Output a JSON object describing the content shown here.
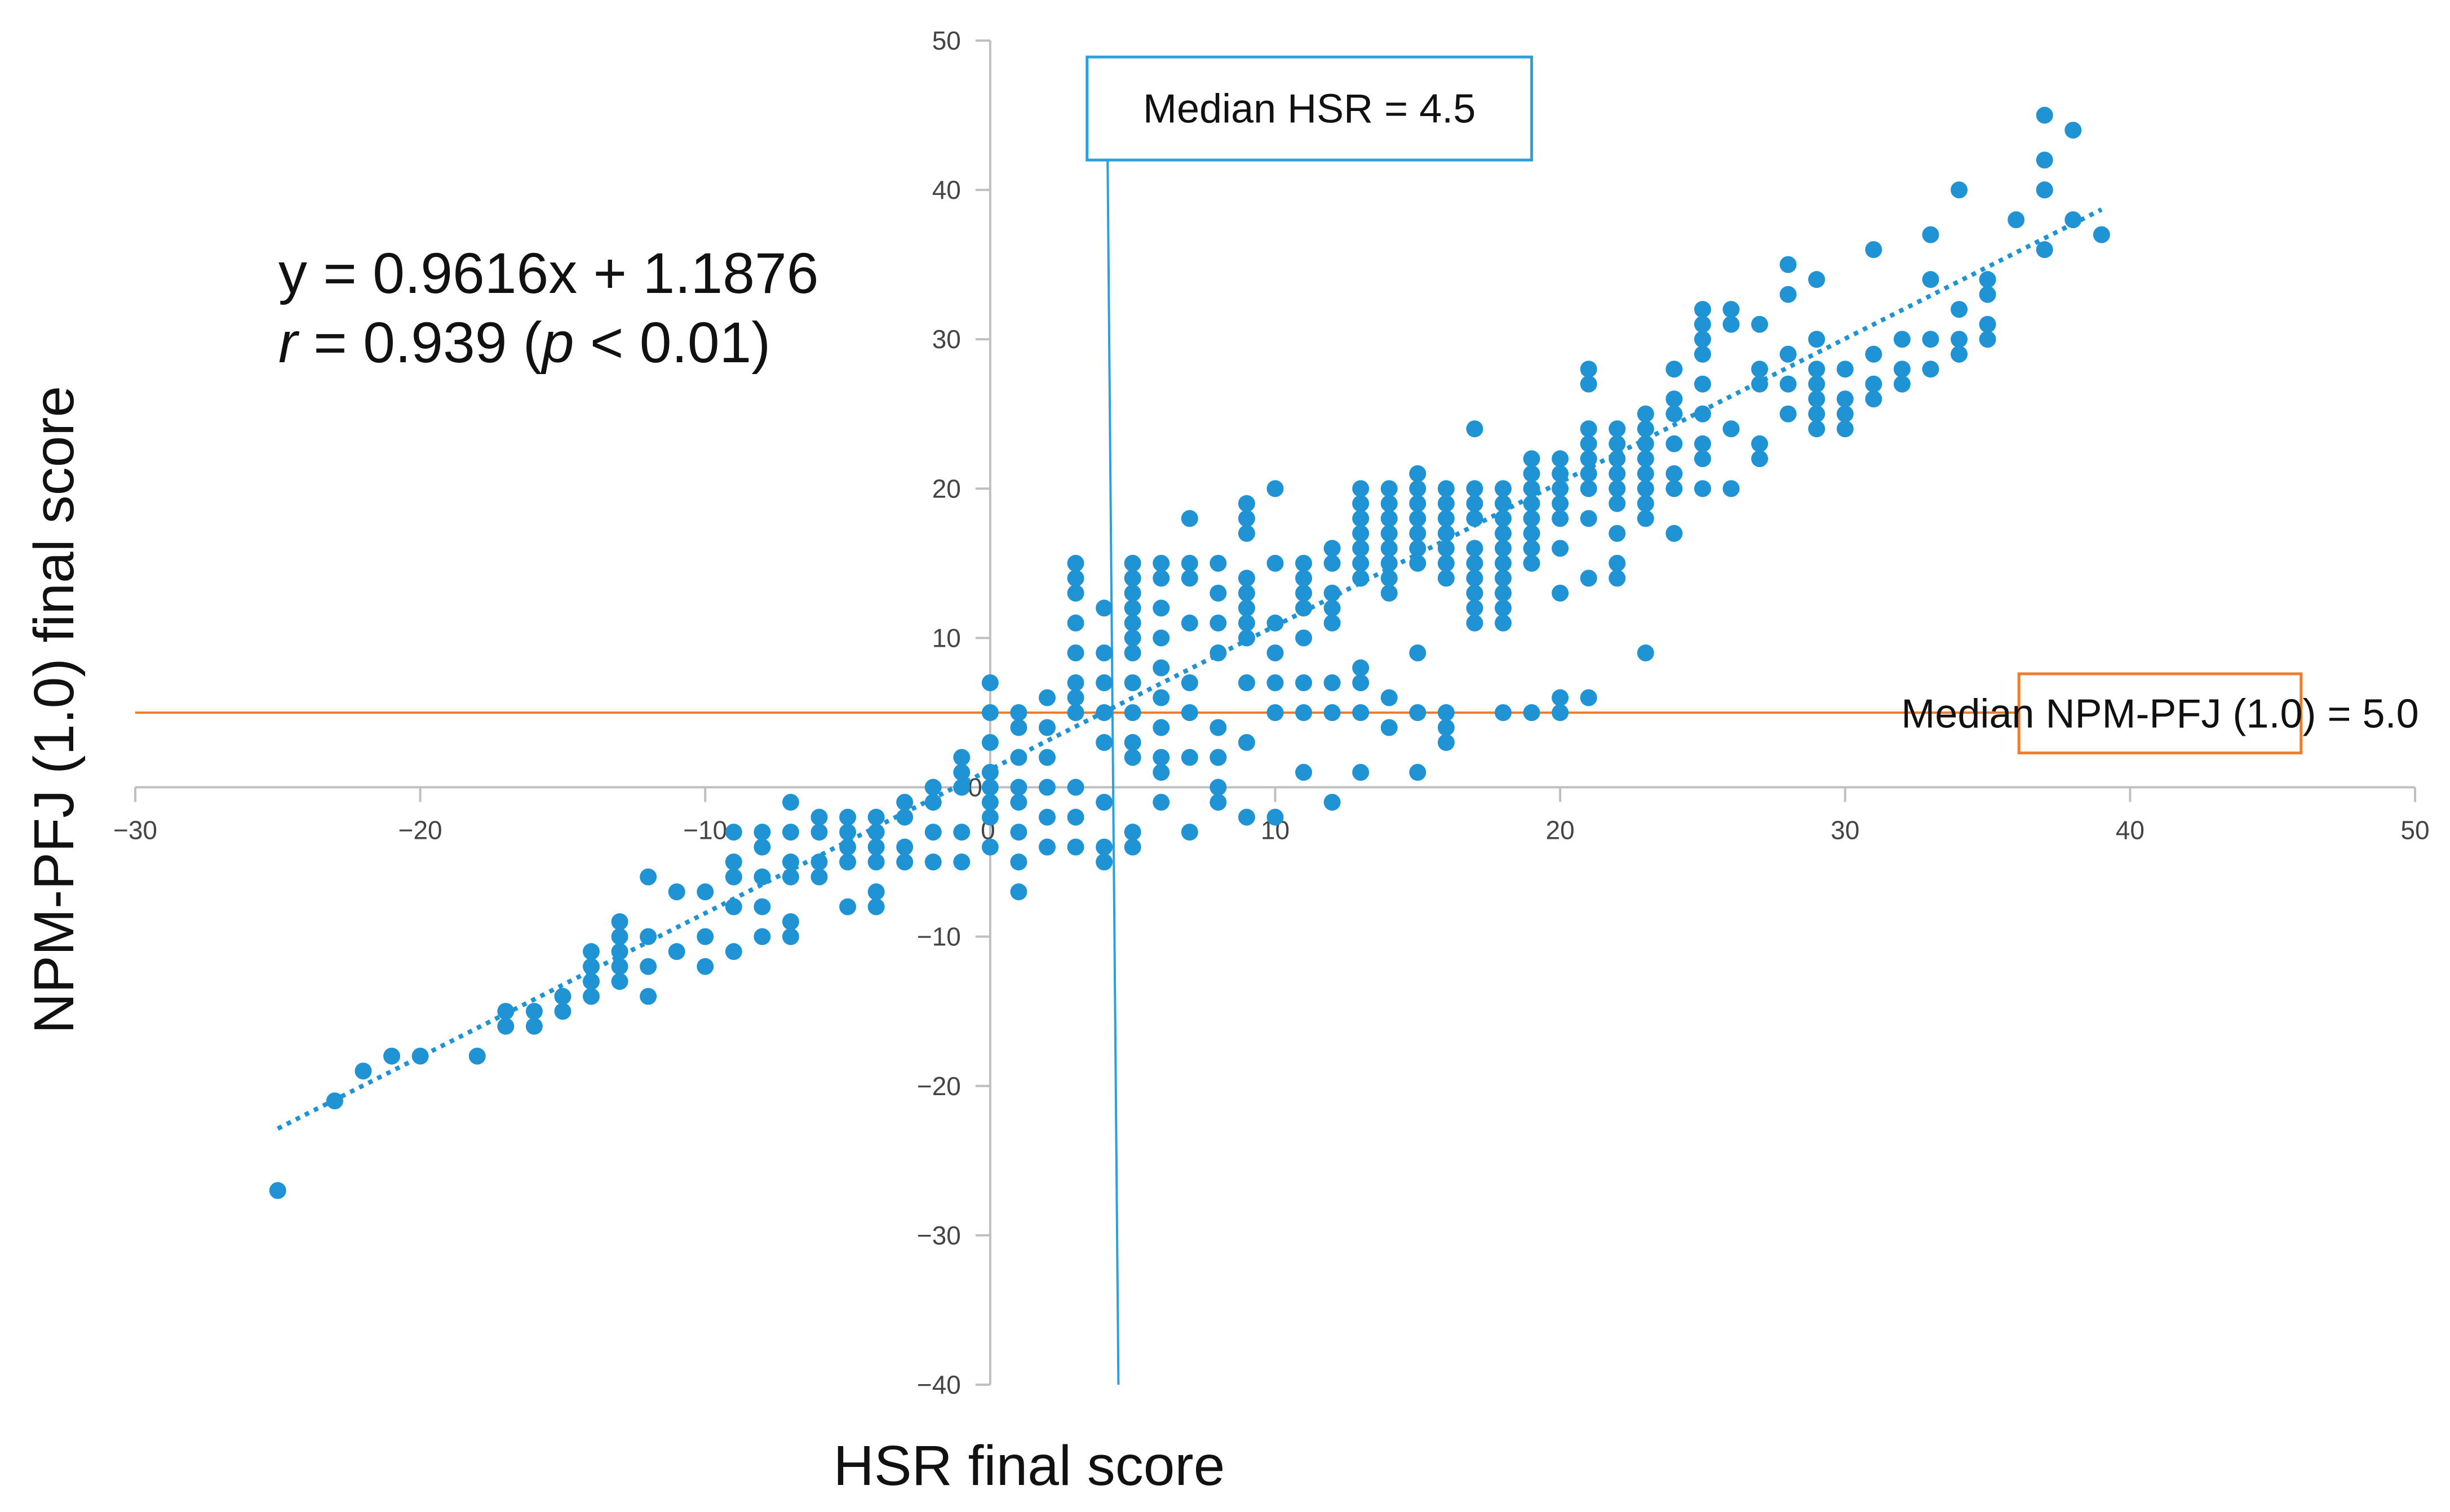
{
  "chart_data": {
    "type": "scatter",
    "xlabel": "HSR final score",
    "ylabel": "NPM-PFJ (1.0) final score",
    "xlim": [
      -30,
      50
    ],
    "ylim": [
      -40,
      50
    ],
    "x_ticks": [
      "−30",
      "−20",
      "−10",
      "0",
      "10",
      "20",
      "30",
      "40",
      "50"
    ],
    "y_ticks": [
      "50",
      "40",
      "30",
      "20",
      "10",
      "0",
      "−10",
      "−20",
      "−30",
      "−40"
    ],
    "trendline": {
      "slope": 0.9616,
      "intercept": 1.1876,
      "x_range": [
        -25,
        39
      ]
    },
    "equation": {
      "line1": "y = 0.9616x + 1.1876",
      "r_label": "r",
      "r_value": " = 0.939 (",
      "p_label": "p",
      "p_value": " < 0.01)"
    },
    "median_x": {
      "value": 4.5,
      "label": "Median HSR = 4.5"
    },
    "median_y": {
      "value": 5.0,
      "label": "Median NPM-PFJ (1.0) = 5.0"
    },
    "colors": {
      "points": "#1f93d3",
      "median_x": "#2aa0dc",
      "median_y": "#ef7d2f",
      "axis": "#bfbfbf"
    },
    "points": [
      [
        -25,
        -27
      ],
      [
        -23,
        -21
      ],
      [
        -22,
        -19
      ],
      [
        -21,
        -18
      ],
      [
        -20,
        -18
      ],
      [
        -18,
        -18
      ],
      [
        -17,
        -15
      ],
      [
        -17,
        -16
      ],
      [
        -16,
        -15
      ],
      [
        -16,
        -16
      ],
      [
        -15,
        -14
      ],
      [
        -15,
        -15
      ],
      [
        -14,
        -11
      ],
      [
        -14,
        -12
      ],
      [
        -14,
        -13
      ],
      [
        -14,
        -14
      ],
      [
        -13,
        -9
      ],
      [
        -13,
        -10
      ],
      [
        -13,
        -11
      ],
      [
        -13,
        -12
      ],
      [
        -13,
        -13
      ],
      [
        -12,
        -6
      ],
      [
        -12,
        -10
      ],
      [
        -12,
        -12
      ],
      [
        -12,
        -14
      ],
      [
        -11,
        -7
      ],
      [
        -11,
        -11
      ],
      [
        -10,
        -7
      ],
      [
        -10,
        -10
      ],
      [
        -10,
        -12
      ],
      [
        -9,
        -3
      ],
      [
        -9,
        -5
      ],
      [
        -9,
        -6
      ],
      [
        -9,
        -8
      ],
      [
        -9,
        -11
      ],
      [
        -8,
        -3
      ],
      [
        -8,
        -4
      ],
      [
        -8,
        -6
      ],
      [
        -8,
        -8
      ],
      [
        -8,
        -10
      ],
      [
        -7,
        -1
      ],
      [
        -7,
        -3
      ],
      [
        -7,
        -5
      ],
      [
        -7,
        -6
      ],
      [
        -7,
        -9
      ],
      [
        -7,
        -10
      ],
      [
        -6,
        -2
      ],
      [
        -6,
        -3
      ],
      [
        -6,
        -5
      ],
      [
        -6,
        -6
      ],
      [
        -5,
        -2
      ],
      [
        -5,
        -3
      ],
      [
        -5,
        -4
      ],
      [
        -5,
        -5
      ],
      [
        -5,
        -8
      ],
      [
        -4,
        -2
      ],
      [
        -4,
        -3
      ],
      [
        -4,
        -4
      ],
      [
        -4,
        -5
      ],
      [
        -4,
        -7
      ],
      [
        -4,
        -8
      ],
      [
        -3,
        -1
      ],
      [
        -3,
        -2
      ],
      [
        -3,
        -4
      ],
      [
        -3,
        -5
      ],
      [
        -2,
        0
      ],
      [
        -2,
        -1
      ],
      [
        -2,
        -3
      ],
      [
        -2,
        -5
      ],
      [
        -1,
        0
      ],
      [
        -1,
        1
      ],
      [
        -1,
        2
      ],
      [
        -1,
        -3
      ],
      [
        -1,
        -5
      ],
      [
        0,
        0
      ],
      [
        0,
        1
      ],
      [
        0,
        3
      ],
      [
        0,
        5
      ],
      [
        0,
        7
      ],
      [
        0,
        -1
      ],
      [
        0,
        -2
      ],
      [
        0,
        -4
      ],
      [
        1,
        0
      ],
      [
        1,
        2
      ],
      [
        1,
        4
      ],
      [
        1,
        5
      ],
      [
        1,
        -1
      ],
      [
        1,
        -3
      ],
      [
        1,
        -5
      ],
      [
        1,
        -7
      ],
      [
        2,
        0
      ],
      [
        2,
        2
      ],
      [
        2,
        4
      ],
      [
        2,
        6
      ],
      [
        2,
        -2
      ],
      [
        2,
        -4
      ],
      [
        3,
        5
      ],
      [
        3,
        6
      ],
      [
        3,
        7
      ],
      [
        3,
        9
      ],
      [
        3,
        11
      ],
      [
        3,
        13
      ],
      [
        3,
        14
      ],
      [
        3,
        15
      ],
      [
        3,
        0
      ],
      [
        3,
        -2
      ],
      [
        3,
        -4
      ],
      [
        4,
        3
      ],
      [
        4,
        5
      ],
      [
        4,
        7
      ],
      [
        4,
        9
      ],
      [
        4,
        12
      ],
      [
        4,
        -1
      ],
      [
        4,
        -4
      ],
      [
        4,
        -5
      ],
      [
        5,
        5
      ],
      [
        5,
        7
      ],
      [
        5,
        9
      ],
      [
        5,
        10
      ],
      [
        5,
        11
      ],
      [
        5,
        12
      ],
      [
        5,
        13
      ],
      [
        5,
        14
      ],
      [
        5,
        15
      ],
      [
        5,
        3
      ],
      [
        5,
        2
      ],
      [
        5,
        -3
      ],
      [
        5,
        -4
      ],
      [
        6,
        4
      ],
      [
        6,
        6
      ],
      [
        6,
        8
      ],
      [
        6,
        10
      ],
      [
        6,
        12
      ],
      [
        6,
        14
      ],
      [
        6,
        15
      ],
      [
        6,
        1
      ],
      [
        6,
        -1
      ],
      [
        6,
        2
      ],
      [
        7,
        5
      ],
      [
        7,
        7
      ],
      [
        7,
        11
      ],
      [
        7,
        14
      ],
      [
        7,
        15
      ],
      [
        7,
        18
      ],
      [
        7,
        -3
      ],
      [
        7,
        2
      ],
      [
        8,
        4
      ],
      [
        8,
        9
      ],
      [
        8,
        11
      ],
      [
        8,
        13
      ],
      [
        8,
        15
      ],
      [
        8,
        2
      ],
      [
        8,
        0
      ],
      [
        8,
        -1
      ],
      [
        8,
        2
      ],
      [
        9,
        7
      ],
      [
        9,
        10
      ],
      [
        9,
        11
      ],
      [
        9,
        12
      ],
      [
        9,
        13
      ],
      [
        9,
        14
      ],
      [
        9,
        17
      ],
      [
        9,
        18
      ],
      [
        9,
        19
      ],
      [
        9,
        -2
      ],
      [
        9,
        3
      ],
      [
        10,
        7
      ],
      [
        10,
        9
      ],
      [
        10,
        11
      ],
      [
        10,
        15
      ],
      [
        10,
        20
      ],
      [
        10,
        -2
      ],
      [
        10,
        5
      ],
      [
        11,
        5
      ],
      [
        11,
        7
      ],
      [
        11,
        10
      ],
      [
        11,
        12
      ],
      [
        11,
        13
      ],
      [
        11,
        14
      ],
      [
        11,
        15
      ],
      [
        11,
        1
      ],
      [
        12,
        5
      ],
      [
        12,
        7
      ],
      [
        12,
        11
      ],
      [
        12,
        12
      ],
      [
        12,
        13
      ],
      [
        12,
        15
      ],
      [
        12,
        16
      ],
      [
        12,
        -1
      ],
      [
        13,
        5
      ],
      [
        13,
        7
      ],
      [
        13,
        14
      ],
      [
        13,
        15
      ],
      [
        13,
        16
      ],
      [
        13,
        17
      ],
      [
        13,
        18
      ],
      [
        13,
        19
      ],
      [
        13,
        20
      ],
      [
        13,
        8
      ],
      [
        13,
        1
      ],
      [
        14,
        4
      ],
      [
        14,
        13
      ],
      [
        14,
        14
      ],
      [
        14,
        15
      ],
      [
        14,
        16
      ],
      [
        14,
        17
      ],
      [
        14,
        18
      ],
      [
        14,
        19
      ],
      [
        14,
        20
      ],
      [
        14,
        6
      ],
      [
        15,
        5
      ],
      [
        15,
        15
      ],
      [
        15,
        16
      ],
      [
        15,
        17
      ],
      [
        15,
        18
      ],
      [
        15,
        19
      ],
      [
        15,
        20
      ],
      [
        15,
        21
      ],
      [
        15,
        9
      ],
      [
        15,
        1
      ],
      [
        16,
        4
      ],
      [
        16,
        5
      ],
      [
        16,
        14
      ],
      [
        16,
        15
      ],
      [
        16,
        16
      ],
      [
        16,
        17
      ],
      [
        16,
        18
      ],
      [
        16,
        19
      ],
      [
        16,
        20
      ],
      [
        16,
        3
      ],
      [
        17,
        11
      ],
      [
        17,
        12
      ],
      [
        17,
        13
      ],
      [
        17,
        14
      ],
      [
        17,
        15
      ],
      [
        17,
        16
      ],
      [
        17,
        18
      ],
      [
        17,
        19
      ],
      [
        17,
        20
      ],
      [
        17,
        24
      ],
      [
        18,
        5
      ],
      [
        18,
        11
      ],
      [
        18,
        12
      ],
      [
        18,
        13
      ],
      [
        18,
        14
      ],
      [
        18,
        15
      ],
      [
        18,
        16
      ],
      [
        18,
        17
      ],
      [
        18,
        18
      ],
      [
        18,
        19
      ],
      [
        18,
        20
      ],
      [
        19,
        5
      ],
      [
        19,
        15
      ],
      [
        19,
        16
      ],
      [
        19,
        17
      ],
      [
        19,
        18
      ],
      [
        19,
        19
      ],
      [
        19,
        20
      ],
      [
        19,
        21
      ],
      [
        19,
        22
      ],
      [
        20,
        5
      ],
      [
        20,
        6
      ],
      [
        20,
        13
      ],
      [
        20,
        16
      ],
      [
        20,
        18
      ],
      [
        20,
        19
      ],
      [
        20,
        20
      ],
      [
        20,
        21
      ],
      [
        20,
        22
      ],
      [
        21,
        6
      ],
      [
        21,
        14
      ],
      [
        21,
        18
      ],
      [
        21,
        20
      ],
      [
        21,
        21
      ],
      [
        21,
        22
      ],
      [
        21,
        23
      ],
      [
        21,
        24
      ],
      [
        21,
        28
      ],
      [
        21,
        27
      ],
      [
        22,
        14
      ],
      [
        22,
        15
      ],
      [
        22,
        17
      ],
      [
        22,
        19
      ],
      [
        22,
        20
      ],
      [
        22,
        21
      ],
      [
        22,
        22
      ],
      [
        22,
        23
      ],
      [
        22,
        24
      ],
      [
        23,
        9
      ],
      [
        23,
        18
      ],
      [
        23,
        19
      ],
      [
        23,
        20
      ],
      [
        23,
        21
      ],
      [
        23,
        22
      ],
      [
        23,
        23
      ],
      [
        23,
        24
      ],
      [
        23,
        25
      ],
      [
        24,
        17
      ],
      [
        24,
        20
      ],
      [
        24,
        21
      ],
      [
        24,
        23
      ],
      [
        24,
        25
      ],
      [
        24,
        26
      ],
      [
        24,
        28
      ],
      [
        25,
        20
      ],
      [
        25,
        22
      ],
      [
        25,
        23
      ],
      [
        25,
        25
      ],
      [
        25,
        27
      ],
      [
        25,
        29
      ],
      [
        25,
        30
      ],
      [
        25,
        31
      ],
      [
        25,
        32
      ],
      [
        26,
        20
      ],
      [
        26,
        24
      ],
      [
        26,
        31
      ],
      [
        26,
        32
      ],
      [
        27,
        22
      ],
      [
        27,
        23
      ],
      [
        27,
        27
      ],
      [
        27,
        28
      ],
      [
        27,
        31
      ],
      [
        28,
        25
      ],
      [
        28,
        27
      ],
      [
        28,
        29
      ],
      [
        28,
        33
      ],
      [
        28,
        35
      ],
      [
        29,
        24
      ],
      [
        29,
        25
      ],
      [
        29,
        26
      ],
      [
        29,
        27
      ],
      [
        29,
        28
      ],
      [
        29,
        30
      ],
      [
        29,
        34
      ],
      [
        30,
        24
      ],
      [
        30,
        25
      ],
      [
        30,
        26
      ],
      [
        30,
        28
      ],
      [
        31,
        26
      ],
      [
        31,
        27
      ],
      [
        31,
        29
      ],
      [
        31,
        36
      ],
      [
        32,
        27
      ],
      [
        32,
        28
      ],
      [
        32,
        30
      ],
      [
        33,
        28
      ],
      [
        33,
        30
      ],
      [
        33,
        34
      ],
      [
        33,
        37
      ],
      [
        34,
        29
      ],
      [
        34,
        30
      ],
      [
        34,
        32
      ],
      [
        34,
        40
      ],
      [
        35,
        30
      ],
      [
        35,
        31
      ],
      [
        35,
        33
      ],
      [
        35,
        34
      ],
      [
        36,
        38
      ],
      [
        37,
        40
      ],
      [
        37,
        36
      ],
      [
        37,
        40
      ],
      [
        37,
        42
      ],
      [
        37,
        45
      ],
      [
        38,
        38
      ],
      [
        38,
        44
      ],
      [
        39,
        37
      ]
    ]
  }
}
